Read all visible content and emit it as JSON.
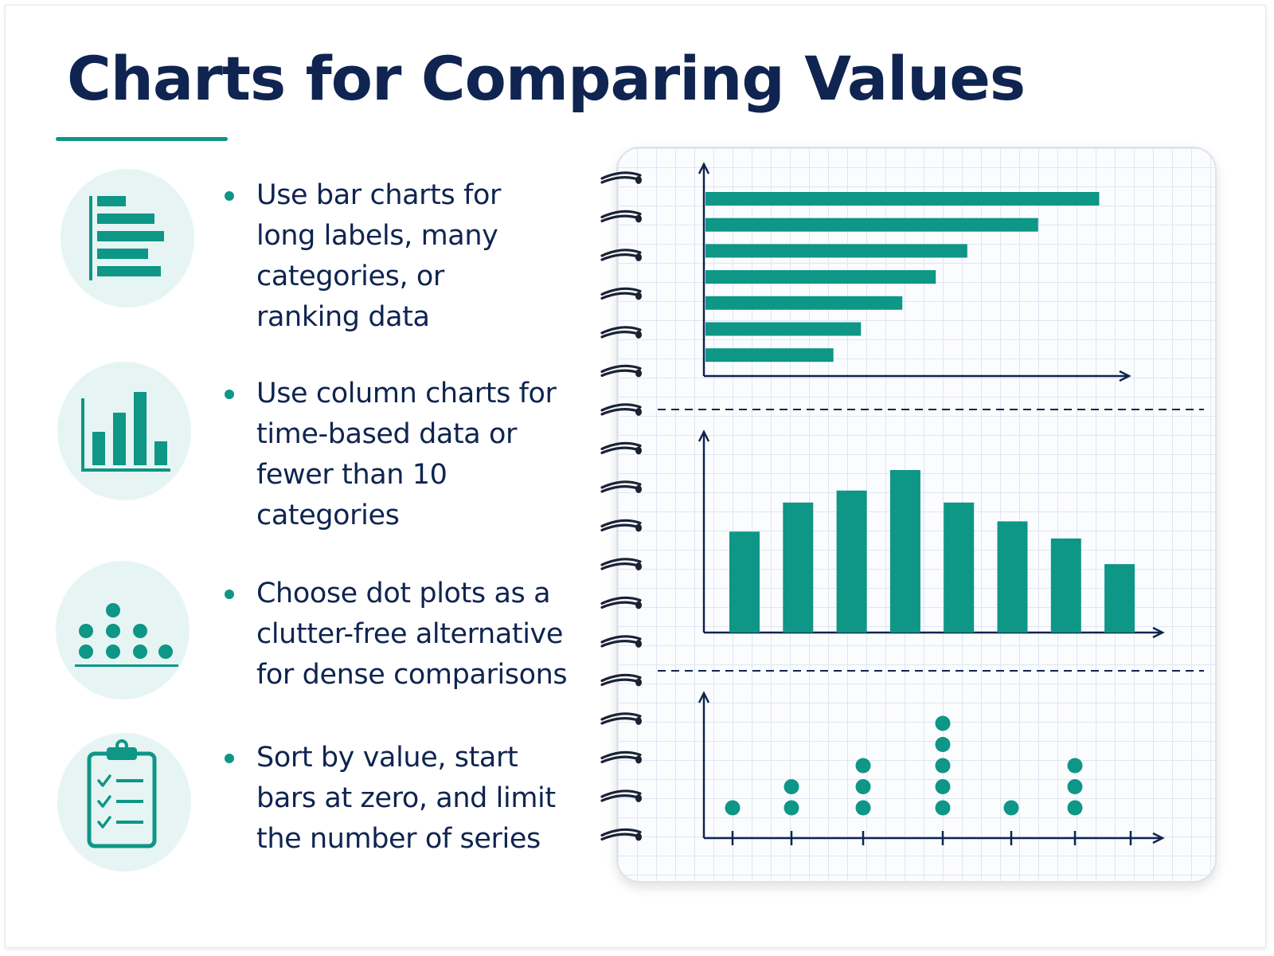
{
  "page": {
    "title": "Charts for Comparing Values"
  },
  "colors": {
    "accent": "#0e9687",
    "navy": "#0f2450",
    "icon_bg": "#e6f5f3",
    "grid": "#dfe6f3"
  },
  "tips": [
    {
      "icon": "bar-chart-icon",
      "text": "Use bar charts for\nlong labels, many\ncategories, or\nranking data"
    },
    {
      "icon": "column-chart-icon",
      "text": "Use column charts for\ntime-based data or\nfewer than 10\ncategories"
    },
    {
      "icon": "dot-plot-icon",
      "text": "Choose dot plots as a\nclutter-free alternative\nfor dense comparisons"
    },
    {
      "icon": "clipboard-checklist-icon",
      "text": "Sort by value, start\nbars at zero, and limit\nthe number of series"
    }
  ],
  "chart_data": [
    {
      "type": "bar",
      "orientation": "horizontal",
      "values": [
        100,
        84.5,
        66.5,
        58.5,
        50,
        39.5,
        32.5
      ],
      "xlim": [
        0,
        108
      ],
      "grid": true
    },
    {
      "type": "bar",
      "orientation": "vertical",
      "values": [
        59,
        76,
        83,
        95,
        76,
        65,
        55,
        40
      ],
      "ylim": [
        0,
        100
      ],
      "grid": true
    },
    {
      "type": "scatter",
      "subtype": "dot plot",
      "values": [
        1,
        2,
        3,
        5,
        1,
        3
      ],
      "ylim": [
        0,
        6
      ],
      "grid": true
    }
  ]
}
